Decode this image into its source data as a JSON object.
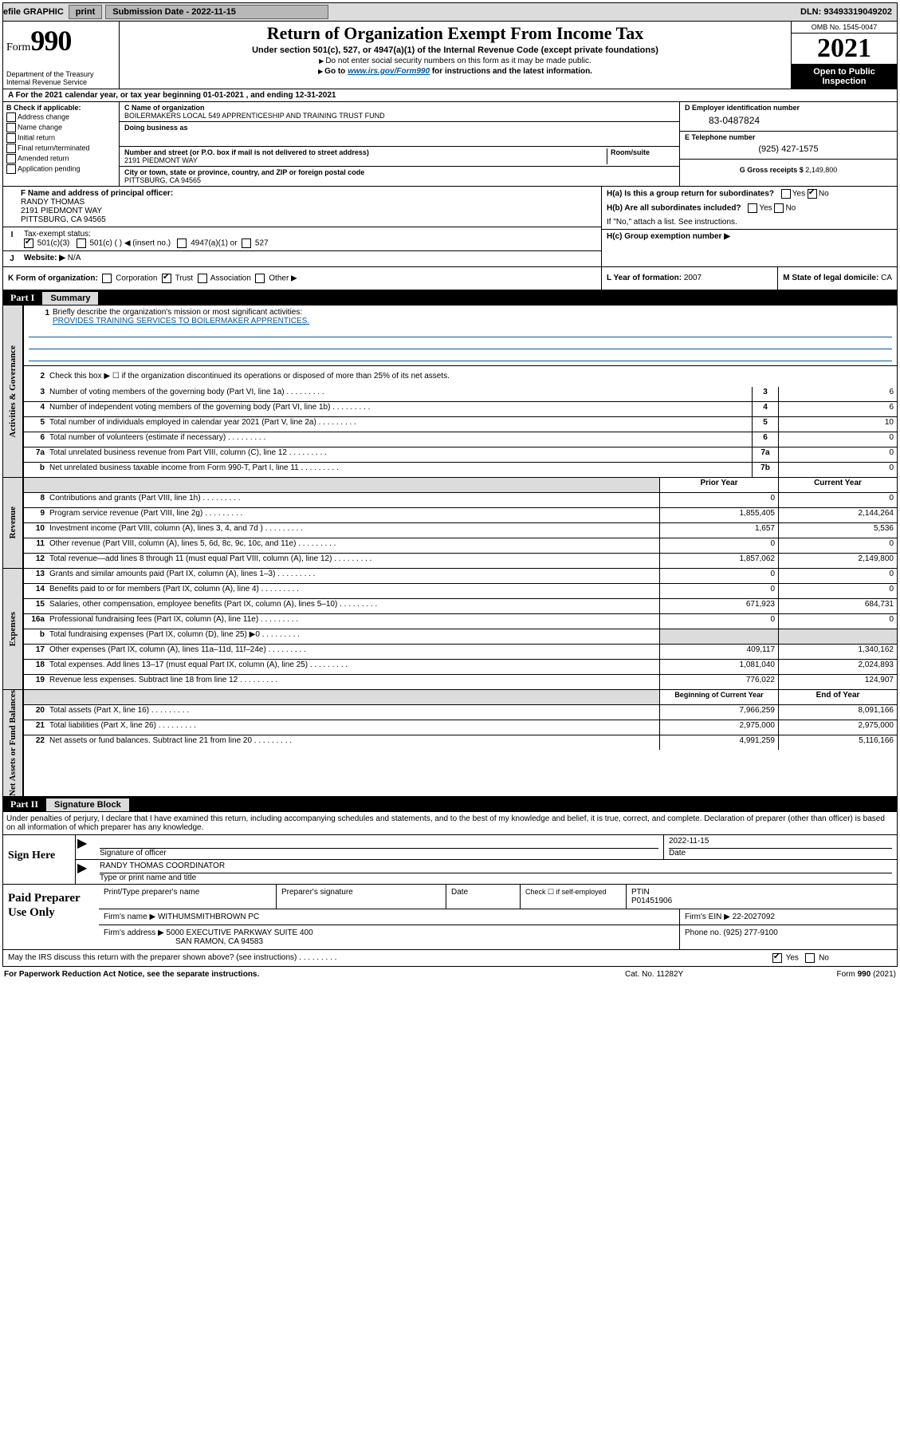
{
  "topbar": {
    "efile_label": "efile GRAPHIC",
    "print_btn": "print",
    "submission_label": "Submission Date - 2022-11-15",
    "dln": "DLN: 93493319049202"
  },
  "header": {
    "form_word": "Form",
    "form_num": "990",
    "dept": "Department of the Treasury\nInternal Revenue Service",
    "title": "Return of Organization Exempt From Income Tax",
    "subtitle_bold": "Under section 501(c), 527, or 4947(a)(1) of the Internal Revenue Code (except private foundations)",
    "no_ssn": "Do not enter social security numbers on this form as it may be made public.",
    "goto_pre": "Go to ",
    "goto_link": "www.irs.gov/Form990",
    "goto_post": " for instructions and the latest information.",
    "omb": "OMB No. 1545-0047",
    "year": "2021",
    "open": "Open to Public Inspection"
  },
  "a_row": "For the 2021 calendar year, or tax year beginning 01-01-2021   , and ending 12-31-2021",
  "b": {
    "header": "B Check if applicable:",
    "items": [
      "Address change",
      "Name change",
      "Initial return",
      "Final return/terminated",
      "Amended return",
      "Application pending"
    ]
  },
  "c": {
    "name_lbl": "C Name of organization",
    "name_val": "BOILERMAKERS LOCAL 549 APPRENTICESHIP AND TRAINING TRUST FUND",
    "dba_lbl": "Doing business as",
    "addr_lbl": "Number and street (or P.O. box if mail is not delivered to street address)",
    "room_lbl": "Room/suite",
    "addr_val": "2191 PIEDMONT WAY",
    "city_lbl": "City or town, state or province, country, and ZIP or foreign postal code",
    "city_val": "PITTSBURG, CA  94565"
  },
  "d": {
    "lbl": "D Employer identification number",
    "val": "83-0487824"
  },
  "e": {
    "lbl": "E Telephone number",
    "val": "(925) 427-1575"
  },
  "g": {
    "lbl": "G Gross receipts $",
    "val": "2,149,800"
  },
  "f": {
    "lbl": "F Name and address of principal officer:",
    "name": "RANDY THOMAS",
    "addr1": "2191 PIEDMONT WAY",
    "addr2": "PITTSBURG, CA  94565"
  },
  "h": {
    "a_lbl": "H(a)  Is this a group return for subordinates?",
    "b_lbl": "H(b)  Are all subordinates included?",
    "attach": "If \"No,\" attach a list. See instructions.",
    "c_lbl": "H(c)  Group exemption number ▶"
  },
  "i": {
    "marker": "I",
    "lbl": "Tax-exempt status:",
    "opts": [
      "501(c)(3)",
      "501(c) (  ) ◀ (insert no.)",
      "4947(a)(1) or",
      "527"
    ]
  },
  "j": {
    "marker": "J",
    "lbl": "Website: ▶",
    "val": "N/A"
  },
  "k": {
    "lbl": "K Form of organization:",
    "opts": [
      "Corporation",
      "Trust",
      "Association",
      "Other ▶"
    ]
  },
  "l": {
    "lbl": "L Year of formation:",
    "val": "2007"
  },
  "m": {
    "lbl": "M State of legal domicile:",
    "val": "CA"
  },
  "part1": {
    "num": "Part I",
    "title": "Summary"
  },
  "briefly": {
    "num": "1",
    "lbl": "Briefly describe the organization's mission or most significant activities:",
    "mission": "PROVIDES TRAINING SERVICES TO BOILERMAKER APPRENTICES."
  },
  "line2": {
    "num": "2",
    "text": "Check this box ▶ ☐  if the organization discontinued its operations or disposed of more than 25% of its net assets."
  },
  "gov_rows": [
    {
      "num": "3",
      "text": "Number of voting members of the governing body (Part VI, line 1a)",
      "box": "3",
      "val": "6"
    },
    {
      "num": "4",
      "text": "Number of independent voting members of the governing body (Part VI, line 1b)",
      "box": "4",
      "val": "6"
    },
    {
      "num": "5",
      "text": "Total number of individuals employed in calendar year 2021 (Part V, line 2a)",
      "box": "5",
      "val": "10"
    },
    {
      "num": "6",
      "text": "Total number of volunteers (estimate if necessary)",
      "box": "6",
      "val": "0"
    },
    {
      "num": "7a",
      "text": "Total unrelated business revenue from Part VIII, column (C), line 12",
      "box": "7a",
      "val": "0"
    },
    {
      "num": "b",
      "text": "Net unrelated business taxable income from Form 990-T, Part I, line 11",
      "box": "7b",
      "val": "0"
    }
  ],
  "twocol_header": {
    "prior": "Prior Year",
    "current": "Current Year"
  },
  "revenue": [
    {
      "num": "8",
      "text": "Contributions and grants (Part VIII, line 1h)",
      "prior": "0",
      "cur": "0"
    },
    {
      "num": "9",
      "text": "Program service revenue (Part VIII, line 2g)",
      "prior": "1,855,405",
      "cur": "2,144,264"
    },
    {
      "num": "10",
      "text": "Investment income (Part VIII, column (A), lines 3, 4, and 7d )",
      "prior": "1,657",
      "cur": "5,536"
    },
    {
      "num": "11",
      "text": "Other revenue (Part VIII, column (A), lines 5, 6d, 8c, 9c, 10c, and 11e)",
      "prior": "0",
      "cur": "0"
    },
    {
      "num": "12",
      "text": "Total revenue—add lines 8 through 11 (must equal Part VIII, column (A), line 12)",
      "prior": "1,857,062",
      "cur": "2,149,800"
    }
  ],
  "expenses": [
    {
      "num": "13",
      "text": "Grants and similar amounts paid (Part IX, column (A), lines 1–3)",
      "prior": "0",
      "cur": "0"
    },
    {
      "num": "14",
      "text": "Benefits paid to or for members (Part IX, column (A), line 4)",
      "prior": "0",
      "cur": "0"
    },
    {
      "num": "15",
      "text": "Salaries, other compensation, employee benefits (Part IX, column (A), lines 5–10)",
      "prior": "671,923",
      "cur": "684,731"
    },
    {
      "num": "16a",
      "text": "Professional fundraising fees (Part IX, column (A), line 11e)",
      "prior": "0",
      "cur": "0"
    },
    {
      "num": "b",
      "text": "Total fundraising expenses (Part IX, column (D), line 25) ▶0",
      "prior": "",
      "cur": "",
      "shade": true
    },
    {
      "num": "17",
      "text": "Other expenses (Part IX, column (A), lines 11a–11d, 11f–24e)",
      "prior": "409,117",
      "cur": "1,340,162"
    },
    {
      "num": "18",
      "text": "Total expenses. Add lines 13–17 (must equal Part IX, column (A), line 25)",
      "prior": "1,081,040",
      "cur": "2,024,893"
    },
    {
      "num": "19",
      "text": "Revenue less expenses. Subtract line 18 from line 12",
      "prior": "776,022",
      "cur": "124,907"
    }
  ],
  "net_header": {
    "prior": "Beginning of Current Year",
    "current": "End of Year"
  },
  "netassets": [
    {
      "num": "20",
      "text": "Total assets (Part X, line 16)",
      "prior": "7,966,259",
      "cur": "8,091,166"
    },
    {
      "num": "21",
      "text": "Total liabilities (Part X, line 26)",
      "prior": "2,975,000",
      "cur": "2,975,000"
    },
    {
      "num": "22",
      "text": "Net assets or fund balances. Subtract line 21 from line 20",
      "prior": "4,991,259",
      "cur": "5,116,166"
    }
  ],
  "part2": {
    "num": "Part II",
    "title": "Signature Block"
  },
  "penalties": "Under penalties of perjury, I declare that I have examined this return, including accompanying schedules and statements, and to the best of my knowledge and belief, it is true, correct, and complete. Declaration of preparer (other than officer) is based on all information of which preparer has any knowledge.",
  "sign": {
    "label": "Sign Here",
    "sig_officer": "Signature of officer",
    "date_lbl": "Date",
    "date_val": "2022-11-15",
    "officer": "RANDY THOMAS COORDINATOR",
    "type_name": "Type or print name and title"
  },
  "paid": {
    "label": "Paid Preparer Use Only",
    "print_lbl": "Print/Type preparer's name",
    "sig_lbl": "Preparer's signature",
    "date_lbl": "Date",
    "check_lbl": "Check ☐ if self-employed",
    "ptin_lbl": "PTIN",
    "ptin_val": "P01451906",
    "firm_name_lbl": "Firm's name    ▶",
    "firm_name": "WITHUMSMITHBROWN PC",
    "firm_ein_lbl": "Firm's EIN ▶",
    "firm_ein": "22-2027092",
    "firm_addr_lbl": "Firm's address ▶",
    "firm_addr1": "5000 EXECUTIVE PARKWAY SUITE 400",
    "firm_addr2": "SAN RAMON, CA  94583",
    "phone_lbl": "Phone no.",
    "phone_val": "(925) 277-9100"
  },
  "discuss": "May the IRS discuss this return with the preparer shown above? (see instructions)",
  "footer": {
    "left": "For Paperwork Reduction Act Notice, see the separate instructions.",
    "mid": "Cat. No. 11282Y",
    "right_pre": "Form ",
    "right_bold": "990",
    "right_post": " (2021)"
  },
  "side_labels": {
    "gov": "Activities & Governance",
    "rev": "Revenue",
    "exp": "Expenses",
    "net": "Net Assets or Fund Balances"
  },
  "yes": "Yes",
  "no": "No"
}
